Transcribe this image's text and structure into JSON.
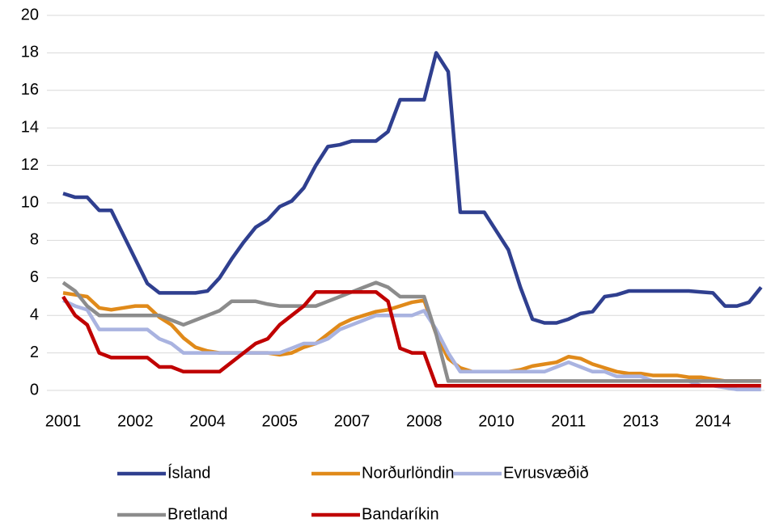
{
  "chart_data": {
    "type": "line",
    "categories": [
      "2001",
      null,
      null,
      null,
      null,
      null,
      "2002",
      null,
      null,
      null,
      null,
      null,
      "2004",
      null,
      null,
      null,
      null,
      null,
      "2005",
      null,
      null,
      null,
      null,
      null,
      "2007",
      null,
      null,
      null,
      null,
      null,
      "2008",
      null,
      null,
      null,
      null,
      null,
      "2010",
      null,
      null,
      null,
      null,
      null,
      "2011",
      null,
      null,
      null,
      null,
      null,
      "2013",
      null,
      null,
      null,
      null,
      null,
      "2014",
      null,
      null,
      null,
      null
    ],
    "series": [
      {
        "name": "Ísland",
        "color": "#2f3f8f",
        "values": [
          10.5,
          10.3,
          10.3,
          9.6,
          9.6,
          8.3,
          7.0,
          5.7,
          5.2,
          5.2,
          5.2,
          5.2,
          5.3,
          6.0,
          7.0,
          7.9,
          8.7,
          9.1,
          9.8,
          10.1,
          10.8,
          12.0,
          13.0,
          13.1,
          13.3,
          13.3,
          13.3,
          13.8,
          15.5,
          15.5,
          15.5,
          18,
          17,
          9.5,
          9.5,
          9.5,
          8.5,
          7.5,
          5.5,
          3.8,
          3.6,
          3.6,
          3.8,
          4.1,
          4.2,
          5.0,
          5.1,
          5.3,
          5.3,
          5.3,
          5.3,
          5.3,
          5.3,
          5.25,
          5.2,
          4.5,
          4.5,
          4.7,
          5.5
        ]
      },
      {
        "name": "Norðurlöndin",
        "color": "#e08a1a",
        "values": [
          5.2,
          5.1,
          5.0,
          4.4,
          4.3,
          4.4,
          4.5,
          4.5,
          3.9,
          3.5,
          2.8,
          2.3,
          2.1,
          2.0,
          2.0,
          2.0,
          2.0,
          2.0,
          1.9,
          2.0,
          2.3,
          2.5,
          3.0,
          3.5,
          3.8,
          4.0,
          4.2,
          4.3,
          4.5,
          4.7,
          4.8,
          3.0,
          1.7,
          1.2,
          1.0,
          1.0,
          1.0,
          1.0,
          1.1,
          1.3,
          1.4,
          1.5,
          1.8,
          1.7,
          1.4,
          1.2,
          1.0,
          0.9,
          0.9,
          0.8,
          0.8,
          0.8,
          0.7,
          0.7,
          0.6,
          0.5,
          0.5,
          0.5,
          0.5
        ]
      },
      {
        "name": "Evrusvæðið",
        "color": "#a9b3e0",
        "values": [
          4.8,
          4.5,
          4.3,
          3.25,
          3.25,
          3.25,
          3.25,
          3.25,
          2.75,
          2.5,
          2,
          2,
          2,
          2,
          2,
          2,
          2,
          2,
          2,
          2.25,
          2.5,
          2.5,
          2.75,
          3.25,
          3.5,
          3.75,
          4,
          4,
          4,
          4,
          4.25,
          3.25,
          2,
          1,
          1,
          1,
          1,
          1,
          1,
          1,
          1,
          1.25,
          1.5,
          1.25,
          1,
          1,
          0.75,
          0.75,
          0.75,
          0.5,
          0.5,
          0.5,
          0.5,
          0.25,
          0.25,
          0.15,
          0.05,
          0.05,
          0.05
        ]
      },
      {
        "name": "Bretland",
        "color": "#8c8c8c",
        "values": [
          5.75,
          5.3,
          4.5,
          4,
          4,
          4,
          4,
          4,
          4,
          3.75,
          3.5,
          3.75,
          4,
          4.25,
          4.75,
          4.75,
          4.75,
          4.6,
          4.5,
          4.5,
          4.5,
          4.5,
          4.75,
          5,
          5.25,
          5.5,
          5.75,
          5.5,
          5,
          5,
          5,
          3,
          0.5,
          0.5,
          0.5,
          0.5,
          0.5,
          0.5,
          0.5,
          0.5,
          0.5,
          0.5,
          0.5,
          0.5,
          0.5,
          0.5,
          0.5,
          0.5,
          0.5,
          0.5,
          0.5,
          0.5,
          0.5,
          0.5,
          0.5,
          0.5,
          0.5,
          0.5,
          0.5
        ]
      },
      {
        "name": "Bandaríkin",
        "color": "#c00000",
        "values": [
          5,
          4,
          3.5,
          2,
          1.75,
          1.75,
          1.75,
          1.75,
          1.25,
          1.25,
          1,
          1,
          1,
          1,
          1.5,
          2,
          2.5,
          2.75,
          3.5,
          4,
          4.5,
          5.25,
          5.25,
          5.25,
          5.25,
          5.25,
          5.25,
          4.75,
          2.25,
          2,
          2,
          0.25,
          0.25,
          0.25,
          0.25,
          0.25,
          0.25,
          0.25,
          0.25,
          0.25,
          0.25,
          0.25,
          0.25,
          0.25,
          0.25,
          0.25,
          0.25,
          0.25,
          0.25,
          0.25,
          0.25,
          0.25,
          0.25,
          0.25,
          0.25,
          0.25,
          0.25,
          0.25,
          0.25
        ]
      }
    ],
    "ylim": [
      0,
      20
    ],
    "yticks": [
      0,
      2,
      4,
      6,
      8,
      10,
      12,
      14,
      16,
      18,
      20
    ],
    "grid": true,
    "legend": "bottom"
  }
}
